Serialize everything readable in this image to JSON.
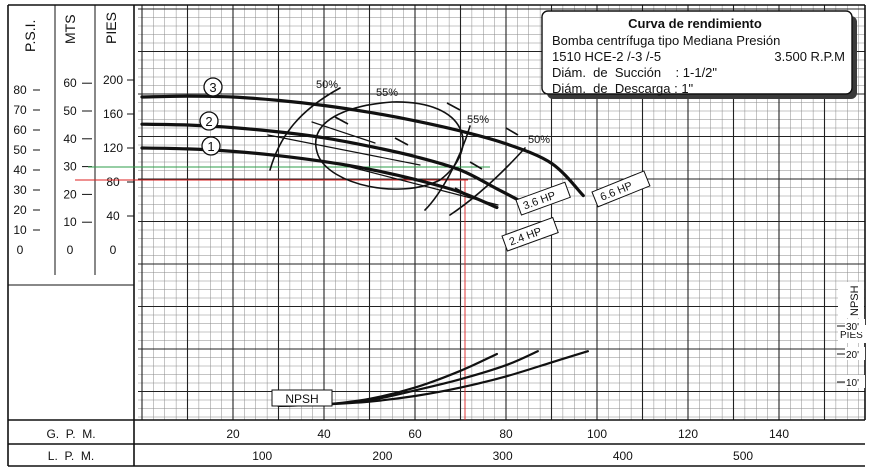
{
  "chart_data": {
    "type": "line",
    "legend_box": {
      "title": "Curva de rendimiento",
      "lines": [
        "Bomba centrífuga tipo Mediana Presión",
        "1510 HCE-2 /-3 /-5",
        "Diám.  de  Succión    : 1-1/2\"",
        "Diám.  de  Descarga : 1\""
      ],
      "rpm": "3.500 R.P.M"
    },
    "left_axes": [
      {
        "label": "P.S.I.",
        "ticks": [
          "80",
          "70",
          "60",
          "50",
          "40",
          "30",
          "20",
          "10",
          "0"
        ]
      },
      {
        "label": "MTS",
        "ticks": [
          "60",
          "50",
          "40",
          "30",
          "20",
          "10",
          "0"
        ]
      },
      {
        "label": "PIES",
        "ticks": [
          "200",
          "160",
          "120",
          "80",
          "40",
          "0"
        ]
      }
    ],
    "x_axes": [
      {
        "label": "G.  P.  M.",
        "ticks": [
          "20",
          "40",
          "60",
          "80",
          "100",
          "120",
          "140"
        ]
      },
      {
        "label": "L.  P.  M.",
        "ticks": [
          "100",
          "200",
          "300",
          "400",
          "500"
        ]
      }
    ],
    "npsh_axis": {
      "label": "NPSH",
      "unit": "PIES",
      "ticks": [
        "30'",
        "20'",
        "10'"
      ]
    },
    "head_curves": [
      {
        "name": "3",
        "x": [
          0,
          10,
          20,
          30,
          40,
          50,
          60,
          70,
          80,
          90,
          97
        ],
        "y": [
          180,
          181,
          180,
          176,
          170,
          162,
          152,
          140,
          125,
          102,
          64
        ]
      },
      {
        "name": "2",
        "x": [
          0,
          10,
          20,
          30,
          40,
          50,
          60,
          70,
          78,
          83
        ],
        "y": [
          148,
          147,
          144,
          139,
          132,
          122,
          110,
          94,
          72,
          58
        ]
      },
      {
        "name": "1",
        "x": [
          0,
          10,
          20,
          30,
          40,
          50,
          60,
          70,
          78
        ],
        "y": [
          120,
          119,
          116,
          111,
          104,
          95,
          83,
          68,
          50
        ]
      }
    ],
    "hp_labels": [
      "6.6 HP",
      "3.6 HP",
      "2.4 HP"
    ],
    "efficiency_labels": [
      "50%",
      "55%",
      "55%",
      "50%"
    ],
    "npsh_curves": [
      {
        "x": [
          30,
          40,
          50,
          60,
          70,
          78
        ],
        "y": [
          1.5,
          2,
          4,
          8,
          14,
          20
        ]
      },
      {
        "x": [
          30,
          40,
          50,
          60,
          70,
          80,
          87
        ],
        "y": [
          1.5,
          2,
          3.5,
          7,
          11,
          16,
          21
        ]
      },
      {
        "x": [
          30,
          40,
          50,
          60,
          70,
          80,
          90,
          98
        ],
        "y": [
          1.5,
          2,
          3,
          5,
          8,
          12,
          17,
          21
        ]
      }
    ],
    "npsh_label": "NPSH",
    "operating_point": {
      "x": 70,
      "y_pies": 80,
      "y_psi": 30
    },
    "xlim": [
      0,
      155
    ],
    "ylim_pies": [
      0,
      220
    ],
    "ylim_npsh": [
      0,
      40
    ],
    "grid": true
  }
}
